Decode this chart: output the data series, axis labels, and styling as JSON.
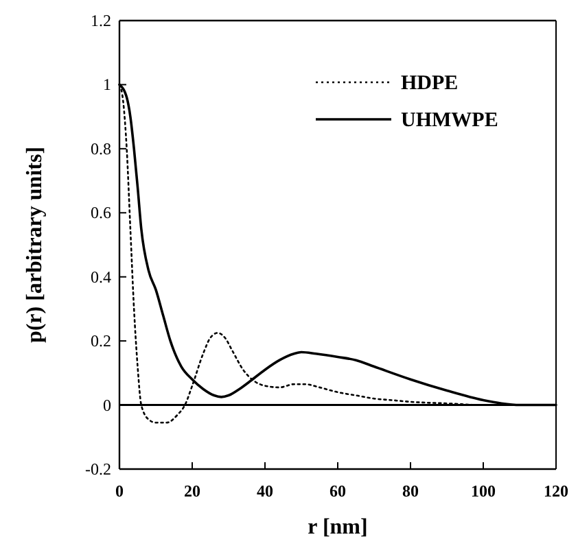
{
  "chart_data": {
    "type": "line",
    "xlabel": "r [nm]",
    "ylabel": "p(r) [arbitrary units]",
    "xlim": [
      0,
      120
    ],
    "xticks": [
      0,
      20,
      40,
      60,
      80,
      100,
      120
    ],
    "ylim": [
      -0.2,
      1.2
    ],
    "yticks": [
      -0.2,
      0,
      0.2,
      0.4,
      0.6,
      0.8,
      1,
      1.2
    ],
    "grid": false,
    "legend": "top right",
    "marker": "none",
    "ref_lines": [
      {
        "axis": "y",
        "value": 0,
        "color": "#000000",
        "line_style": "solid"
      }
    ],
    "series": [
      {
        "name": "HDPE",
        "color": "#000000",
        "line_style": "dotted",
        "x": [
          0,
          1,
          2,
          3,
          4,
          5,
          6,
          8,
          10,
          13,
          16,
          18,
          20,
          23,
          25,
          27,
          29,
          31,
          34,
          37,
          40,
          44,
          48,
          51,
          55,
          60,
          65,
          70,
          75,
          80,
          90,
          100,
          120
        ],
        "values": [
          1,
          0.95,
          0.8,
          0.55,
          0.3,
          0.12,
          0,
          -0.045,
          -0.055,
          -0.055,
          -0.03,
          0,
          0.06,
          0.16,
          0.21,
          0.225,
          0.21,
          0.17,
          0.11,
          0.075,
          0.06,
          0.055,
          0.065,
          0.065,
          0.055,
          0.04,
          0.03,
          0.02,
          0.015,
          0.01,
          0.005,
          0,
          0
        ]
      },
      {
        "name": "UHMWPE",
        "color": "#000000",
        "line_style": "solid",
        "x": [
          0,
          2,
          3,
          4,
          5,
          6,
          8,
          10,
          12,
          14,
          17,
          20,
          23,
          26,
          28,
          30,
          33,
          36,
          40,
          44,
          48,
          50,
          54,
          60,
          65,
          70,
          80,
          90,
          100,
          105,
          110,
          120
        ],
        "values": [
          1,
          0.96,
          0.9,
          0.8,
          0.68,
          0.55,
          0.42,
          0.36,
          0.28,
          0.2,
          0.12,
          0.08,
          0.05,
          0.03,
          0.025,
          0.03,
          0.05,
          0.075,
          0.11,
          0.14,
          0.16,
          0.165,
          0.16,
          0.15,
          0.14,
          0.12,
          0.08,
          0.045,
          0.015,
          0.005,
          0,
          0
        ]
      }
    ]
  }
}
